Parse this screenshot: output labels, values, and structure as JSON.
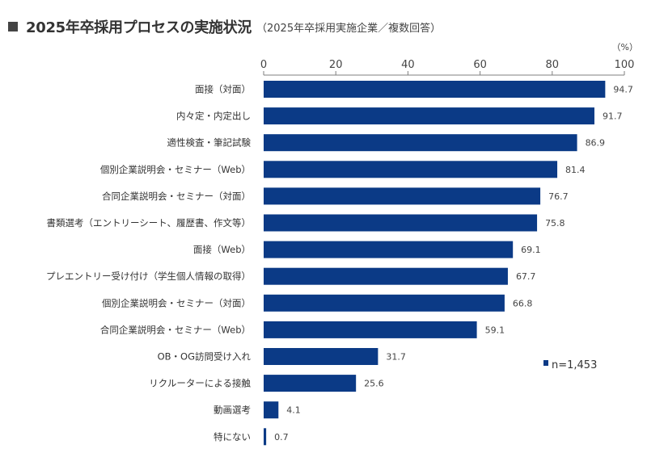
{
  "chart_data": {
    "type": "bar",
    "orientation": "horizontal",
    "title": "2025年卒採用プロセスの実施状況",
    "subtitle": "（2025年卒採用実施企業／複数回答）",
    "unit": "（%）",
    "xlabel": "",
    "ylabel": "",
    "xlim": [
      0,
      100
    ],
    "ticks": [
      0,
      20,
      40,
      60,
      80,
      100
    ],
    "tick_labels": [
      "0",
      "20",
      "40",
      "60",
      "80",
      "100"
    ],
    "grid": false,
    "categories": [
      "面接（対面）",
      "内々定・内定出し",
      "適性検査・筆記試験",
      "個別企業説明会・セミナー（Web）",
      "合同企業説明会・セミナー（対面）",
      "書類選考（エントリーシート、履歴書、作文等）",
      "面接（Web）",
      "プレエントリー受け付け（学生個人情報の取得）",
      "個別企業説明会・セミナー（対面）",
      "合同企業説明会・セミナー（Web）",
      "OB・OG訪問受け入れ",
      "リクルーターによる接触",
      "動画選考",
      "特にない"
    ],
    "values": [
      94.7,
      91.7,
      86.9,
      81.4,
      76.7,
      75.8,
      69.1,
      67.7,
      66.8,
      59.1,
      31.7,
      25.6,
      4.1,
      0.7
    ],
    "value_labels": [
      "94.7",
      "91.7",
      "86.9",
      "81.4",
      "76.7",
      "75.8",
      "69.1",
      "67.7",
      "66.8",
      "59.1",
      "31.7",
      "25.6",
      "4.1",
      "0.7"
    ],
    "legend": {
      "label": "n=1,453",
      "placement": "bottom-right"
    },
    "bar_color": "#0b3a86",
    "axis_color": "#7f7f7f"
  }
}
